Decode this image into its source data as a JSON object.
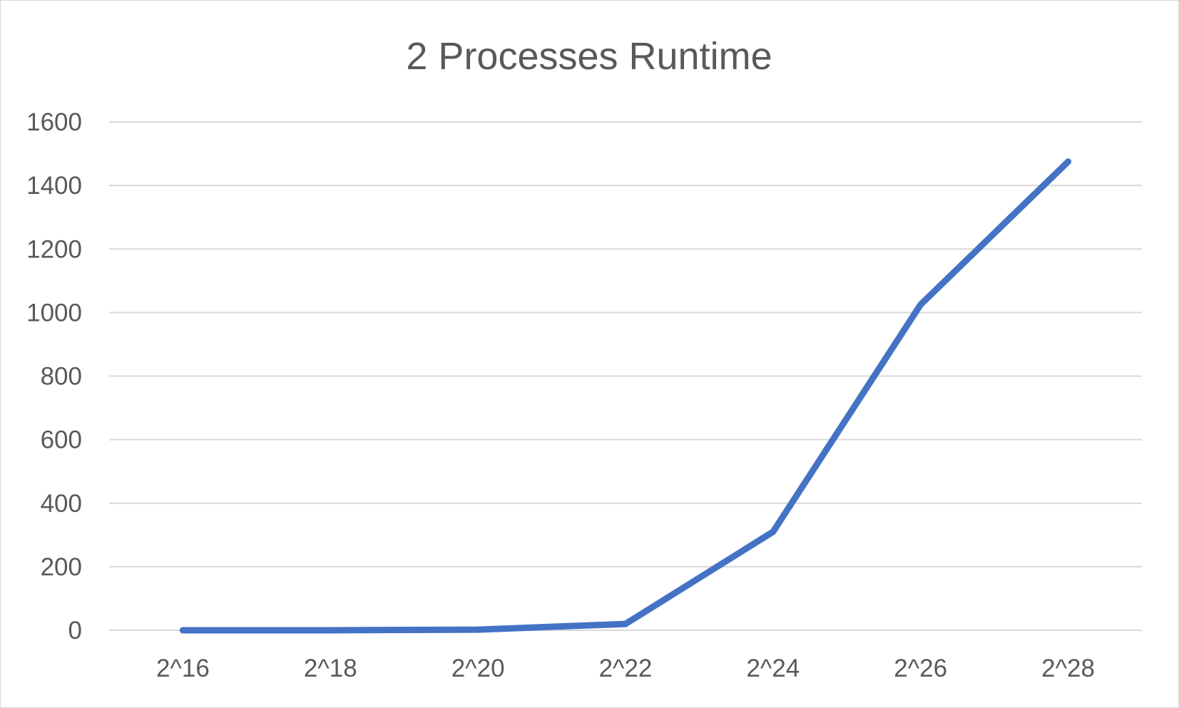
{
  "chart_data": {
    "type": "line",
    "title": "2 Processes Runtime",
    "xlabel": "",
    "ylabel": "",
    "categories": [
      "2^16",
      "2^18",
      "2^20",
      "2^22",
      "2^24",
      "2^26",
      "2^28"
    ],
    "series": [
      {
        "values": [
          0,
          0,
          2,
          20,
          310,
          1025,
          1475
        ],
        "color": "#4472C4"
      }
    ],
    "ylim": [
      0,
      1600
    ],
    "yticks": [
      0,
      200,
      400,
      600,
      800,
      1000,
      1200,
      1400,
      1600
    ],
    "grid": true,
    "legend": "none"
  }
}
